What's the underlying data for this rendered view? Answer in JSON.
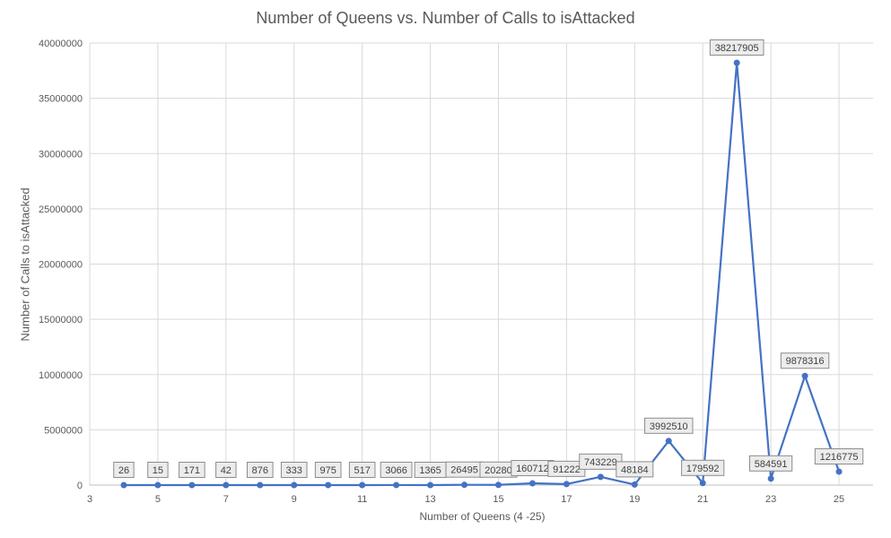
{
  "chart_data": {
    "type": "line",
    "title": "Number of Queens vs. Number of Calls to isAttacked",
    "xlabel": "Number of Queens (4 -25)",
    "ylabel": "Number of Calls to isAttacked",
    "xlim": [
      3,
      26
    ],
    "ylim": [
      0,
      40000000
    ],
    "xticks": [
      3,
      5,
      7,
      9,
      11,
      13,
      15,
      17,
      19,
      21,
      23,
      25
    ],
    "yticks": [
      0,
      5000000,
      10000000,
      15000000,
      20000000,
      25000000,
      30000000,
      35000000,
      40000000
    ],
    "grid": true,
    "legend": "none",
    "series": [
      {
        "color": "#4472C4",
        "x": [
          4,
          5,
          6,
          7,
          8,
          9,
          10,
          11,
          12,
          13,
          14,
          15,
          16,
          17,
          18,
          19,
          20,
          21,
          22,
          23,
          24,
          25
        ],
        "values": [
          26,
          15,
          171,
          42,
          876,
          333,
          975,
          517,
          3066,
          1365,
          26495,
          20280,
          160712,
          91222,
          743229,
          48184,
          3992510,
          179592,
          38217905,
          584591,
          9878316,
          1216775
        ],
        "labels": [
          "26",
          "15",
          "171",
          "42",
          "876",
          "333",
          "975",
          "517",
          "3066",
          "1365",
          "26495",
          "20280",
          "160712",
          "91222",
          "743229",
          "48184",
          "3992510",
          "179592",
          "38217905",
          "584591",
          "9878316",
          "1216775"
        ]
      }
    ]
  }
}
